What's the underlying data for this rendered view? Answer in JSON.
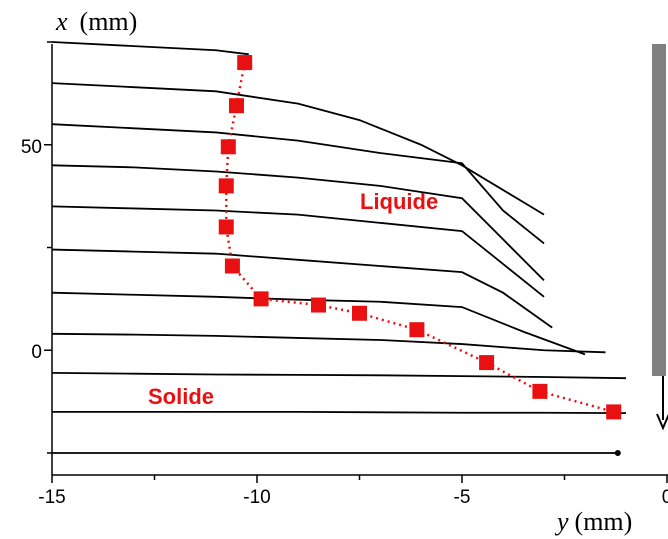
{
  "chart_data": {
    "type": "line",
    "x_axis": {
      "variable": "y",
      "unit": "(mm)",
      "range": [
        -15,
        0
      ],
      "ticks": [
        -15,
        -10,
        -5,
        0
      ],
      "tick_labels": [
        "-15",
        "-10",
        "-5",
        "0"
      ]
    },
    "y_axis": {
      "variable": "x",
      "unit": "(mm)",
      "range": [
        -25,
        75
      ],
      "ticks": [
        0,
        50
      ],
      "tick_labels": [
        "0",
        "50"
      ]
    },
    "series": [
      {
        "values": [
          [
            -15,
            75
          ],
          [
            -13,
            74
          ],
          [
            -11,
            73
          ],
          [
            -10.2,
            72
          ]
        ]
      },
      {
        "values": [
          [
            -15,
            65
          ],
          [
            -13,
            64
          ],
          [
            -11,
            63
          ],
          [
            -9,
            60
          ],
          [
            -7.5,
            56
          ],
          [
            -6,
            50
          ],
          [
            -5,
            45
          ],
          [
            -3.5,
            36
          ],
          [
            -3,
            33
          ]
        ]
      },
      {
        "values": [
          [
            -15,
            55
          ],
          [
            -13,
            54
          ],
          [
            -11,
            53
          ],
          [
            -9,
            51
          ],
          [
            -7,
            48
          ],
          [
            -5,
            45.5
          ],
          [
            -4,
            34
          ],
          [
            -3,
            26
          ]
        ]
      },
      {
        "values": [
          [
            -15,
            45
          ],
          [
            -13,
            44.5
          ],
          [
            -11,
            43.5
          ],
          [
            -9,
            42
          ],
          [
            -7,
            40
          ],
          [
            -5,
            37
          ],
          [
            -4,
            27
          ],
          [
            -3,
            17
          ]
        ]
      },
      {
        "values": [
          [
            -15,
            35
          ],
          [
            -13,
            34.5
          ],
          [
            -11,
            34
          ],
          [
            -9,
            33
          ],
          [
            -7,
            31
          ],
          [
            -5,
            29
          ],
          [
            -4,
            21
          ],
          [
            -3,
            13
          ]
        ]
      },
      {
        "values": [
          [
            -15,
            24.5
          ],
          [
            -13,
            24
          ],
          [
            -11,
            23.5
          ],
          [
            -9,
            22
          ],
          [
            -7,
            20.5
          ],
          [
            -5,
            19
          ],
          [
            -4,
            14
          ],
          [
            -2.8,
            5.5
          ]
        ]
      },
      {
        "values": [
          [
            -15,
            14
          ],
          [
            -13,
            13.5
          ],
          [
            -11,
            13
          ],
          [
            -9,
            12.3
          ],
          [
            -7,
            11.8
          ],
          [
            -5,
            10.5
          ],
          [
            -3.5,
            4.5
          ],
          [
            -2,
            -1
          ]
        ]
      },
      {
        "values": [
          [
            -15,
            4
          ],
          [
            -13,
            3.8
          ],
          [
            -11,
            3.5
          ],
          [
            -9,
            3
          ],
          [
            -7,
            2.5
          ],
          [
            -5,
            1.5
          ],
          [
            -3,
            0
          ],
          [
            -1.5,
            -0.5
          ]
        ]
      },
      {
        "values": [
          [
            -15,
            -5.5
          ],
          [
            -13,
            -5.7
          ],
          [
            -11,
            -5.9
          ],
          [
            -9,
            -6
          ],
          [
            -7,
            -6.1
          ],
          [
            -5,
            -6.3
          ],
          [
            -3,
            -6.5
          ],
          [
            -1,
            -6.8
          ]
        ]
      },
      {
        "values": [
          [
            -15,
            -15
          ],
          [
            -13,
            -15
          ],
          [
            -11,
            -15
          ],
          [
            -9,
            -15
          ],
          [
            -7,
            -15.1
          ],
          [
            -5,
            -15.2
          ],
          [
            -3,
            -15.2
          ],
          [
            -1,
            -15.3
          ]
        ]
      },
      {
        "values": [
          [
            -15,
            -25
          ],
          [
            -13,
            -25
          ],
          [
            -11,
            -25
          ],
          [
            -9,
            -25
          ],
          [
            -7,
            -25
          ],
          [
            -5,
            -25
          ],
          [
            -3,
            -25
          ],
          [
            -1.2,
            -25
          ]
        ]
      }
    ],
    "markers": {
      "color": "#e81010",
      "marker": "square",
      "line_style": "dotted",
      "points": [
        [
          -10.3,
          70
        ],
        [
          -10.5,
          59.5
        ],
        [
          -10.7,
          49.5
        ],
        [
          -10.75,
          40
        ],
        [
          -10.75,
          30
        ],
        [
          -10.6,
          20.5
        ],
        [
          -9.9,
          12.5
        ],
        [
          -8.5,
          11
        ],
        [
          -7.5,
          9
        ],
        [
          -6.1,
          5
        ],
        [
          -4.4,
          -3
        ],
        [
          -3.1,
          -10
        ],
        [
          -1.3,
          -15
        ]
      ]
    },
    "annotations": [
      {
        "text": "Liquide",
        "x": -6.5,
        "y": 36,
        "color": "#e81010"
      },
      {
        "text": "Solide",
        "x": -12.7,
        "y": -11,
        "color": "#e81010"
      }
    ],
    "colors": {
      "lines": "#000000",
      "markers": "#e81010",
      "wall": "#808080"
    }
  }
}
